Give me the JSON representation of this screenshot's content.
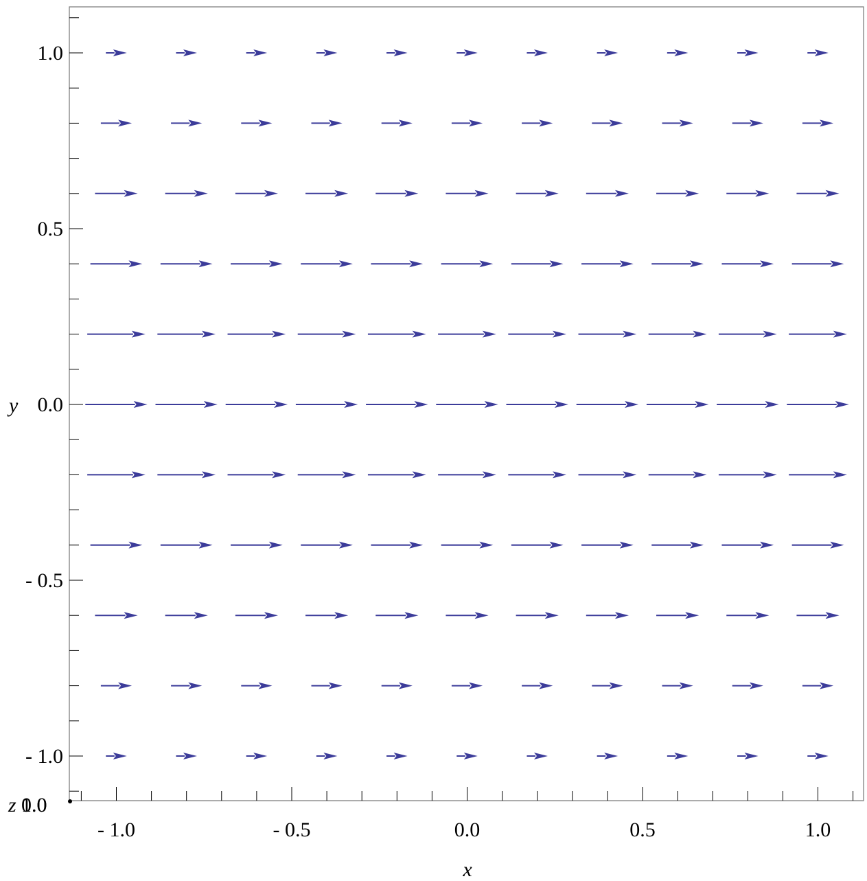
{
  "chart_data": {
    "type": "vector_field",
    "xlabel": "x",
    "ylabel": "y",
    "zlabel_fragment": "z",
    "corner_labels": [
      "0.0",
      "1.0"
    ],
    "xlim": [
      -1.1,
      1.1
    ],
    "ylim": [
      -1.1,
      1.1
    ],
    "x_ticks": [
      {
        "value": -1.0,
        "label": "- 1.0"
      },
      {
        "value": -0.5,
        "label": "- 0.5"
      },
      {
        "value": 0.0,
        "label": "0.0"
      },
      {
        "value": 0.5,
        "label": "0.5"
      },
      {
        "value": 1.0,
        "label": "1.0"
      }
    ],
    "y_ticks": [
      {
        "value": 1.0,
        "label": "1.0"
      },
      {
        "value": 0.5,
        "label": "0.5"
      },
      {
        "value": 0.0,
        "label": "0.0"
      },
      {
        "value": -0.5,
        "label": "- 0.5"
      },
      {
        "value": -1.0,
        "label": "- 1.0"
      }
    ],
    "minor_tick_step": 0.1,
    "grid_x": [
      -1.0,
      -0.8,
      -0.6,
      -0.4,
      -0.2,
      0.0,
      0.2,
      0.4,
      0.6,
      0.8,
      1.0
    ],
    "grid_y": [
      1.0,
      0.8,
      0.6,
      0.4,
      0.2,
      0.0,
      -0.2,
      -0.4,
      -0.6,
      -0.8,
      -1.0
    ],
    "vector_direction": "+x",
    "relative_magnitude_by_row": [
      0.27,
      0.4,
      0.55,
      0.67,
      0.75,
      0.8,
      0.75,
      0.67,
      0.55,
      0.4,
      0.27
    ],
    "arrow_color": "#3c3c9a",
    "grid": false
  }
}
